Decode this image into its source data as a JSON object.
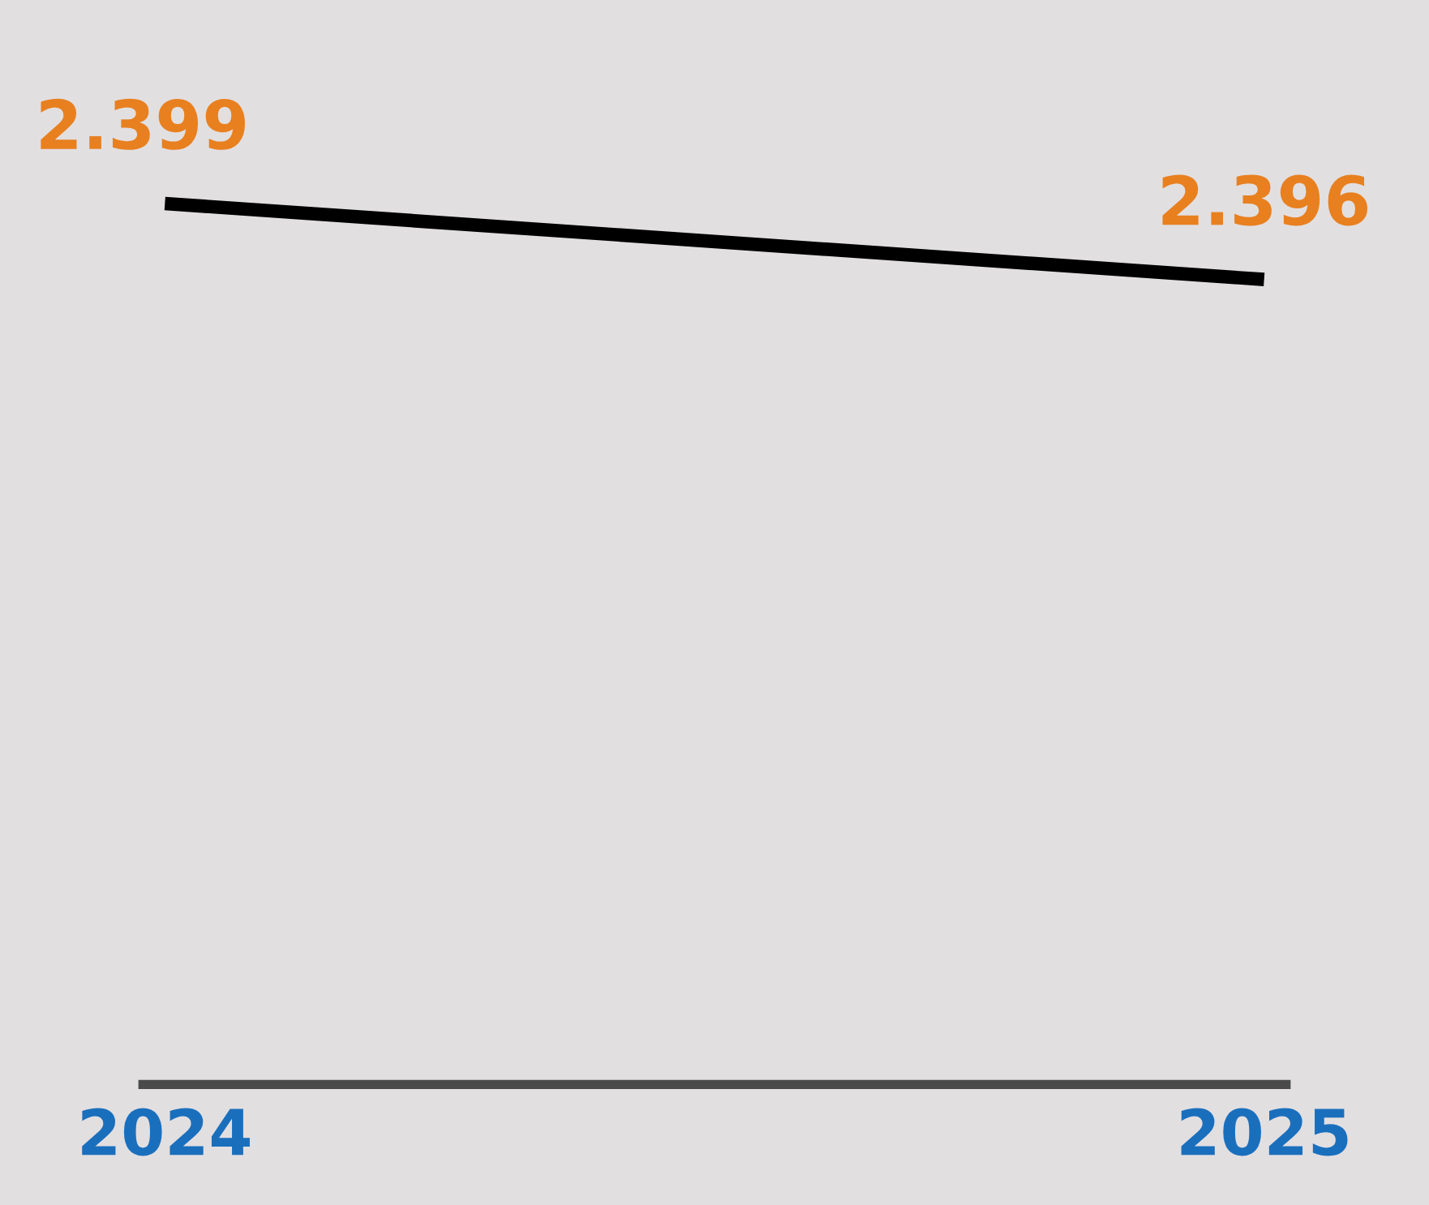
{
  "chart_data": {
    "type": "line",
    "categories": [
      "2024",
      "2025"
    ],
    "series": [
      {
        "color": "#000000",
        "values": [
          2.399,
          2.396
        ]
      }
    ],
    "data_labels": true,
    "marker": "none",
    "line_style": "solid",
    "grid": false,
    "legend": false,
    "tick_labels": "x"
  }
}
